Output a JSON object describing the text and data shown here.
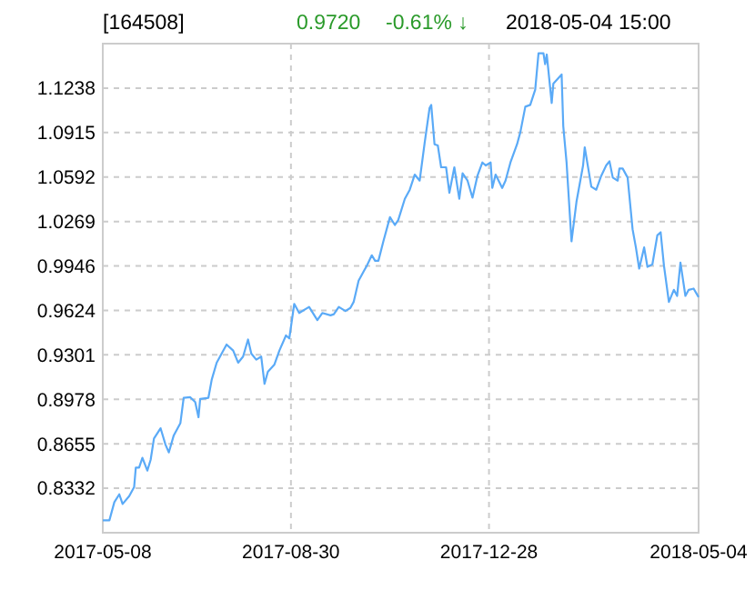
{
  "chart_data": {
    "type": "line",
    "title": "[164508]",
    "annotations": [
      "0.9720",
      "-0.61% ↓",
      "2018-05-04 15:00"
    ],
    "x": [
      "2017-05-08",
      "2017-05-12",
      "2017-05-15",
      "2017-05-18",
      "2017-05-20",
      "2017-05-24",
      "2017-05-27",
      "2017-05-28",
      "2017-05-30",
      "2017-06-01",
      "2017-06-04",
      "2017-06-06",
      "2017-06-08",
      "2017-06-12",
      "2017-06-15",
      "2017-06-17",
      "2017-06-20",
      "2017-06-24",
      "2017-06-26",
      "2017-06-30",
      "2017-07-03",
      "2017-07-05",
      "2017-07-06",
      "2017-07-11",
      "2017-07-13",
      "2017-07-16",
      "2017-07-19",
      "2017-07-22",
      "2017-07-26",
      "2017-07-29",
      "2017-08-01",
      "2017-08-04",
      "2017-08-06",
      "2017-08-09",
      "2017-08-12",
      "2017-08-14",
      "2017-08-16",
      "2017-08-20",
      "2017-08-23",
      "2017-08-27",
      "2017-08-29",
      "2017-09-01",
      "2017-09-04",
      "2017-09-10",
      "2017-09-15",
      "2017-09-18",
      "2017-09-23",
      "2017-09-25",
      "2017-09-28",
      "2017-10-02",
      "2017-10-05",
      "2017-10-07",
      "2017-10-10",
      "2017-10-13",
      "2017-10-15",
      "2017-10-18",
      "2017-10-20",
      "2017-10-22",
      "2017-10-25",
      "2017-10-29",
      "2017-11-01",
      "2017-11-03",
      "2017-11-07",
      "2017-11-10",
      "2017-11-13",
      "2017-11-16",
      "2017-11-19",
      "2017-11-22",
      "2017-11-23",
      "2017-11-25",
      "2017-11-27",
      "2017-11-29",
      "2017-12-02",
      "2017-12-04",
      "2017-12-07",
      "2017-12-10",
      "2017-12-12",
      "2017-12-15",
      "2017-12-18",
      "2017-12-21",
      "2017-12-24",
      "2017-12-26",
      "2017-12-29",
      "2017-12-30",
      "2018-01-01",
      "2018-01-05",
      "2018-01-07",
      "2018-01-10",
      "2018-01-14",
      "2018-01-16",
      "2018-01-19",
      "2018-01-22",
      "2018-01-25",
      "2018-01-27",
      "2018-01-30",
      "2018-01-31",
      "2018-02-01",
      "2018-02-04",
      "2018-02-05",
      "2018-02-10",
      "2018-02-11",
      "2018-02-13",
      "2018-02-16",
      "2018-02-19",
      "2018-02-23",
      "2018-02-24",
      "2018-02-28",
      "2018-03-03",
      "2018-03-06",
      "2018-03-09",
      "2018-03-11",
      "2018-03-13",
      "2018-03-16",
      "2018-03-17",
      "2018-03-19",
      "2018-03-22",
      "2018-03-25",
      "2018-03-27",
      "2018-03-29",
      "2018-04-01",
      "2018-04-03",
      "2018-04-06",
      "2018-04-09",
      "2018-04-11",
      "2018-04-13",
      "2018-04-16",
      "2018-04-19",
      "2018-04-21",
      "2018-04-23",
      "2018-04-26",
      "2018-04-28",
      "2018-05-01",
      "2018-05-04"
    ],
    "series": [
      {
        "color": "#5aaaf7",
        "values": [
          0.8099,
          0.8099,
          0.8231,
          0.8288,
          0.8218,
          0.8275,
          0.8341,
          0.8482,
          0.8482,
          0.8553,
          0.846,
          0.8539,
          0.8693,
          0.8768,
          0.8649,
          0.8592,
          0.8716,
          0.8804,
          0.8989,
          0.8993,
          0.8958,
          0.8848,
          0.898,
          0.8989,
          0.9121,
          0.9244,
          0.931,
          0.9376,
          0.9332,
          0.9244,
          0.9288,
          0.9412,
          0.931,
          0.9266,
          0.9288,
          0.909,
          0.9178,
          0.9231,
          0.9332,
          0.9442,
          0.942,
          0.9671,
          0.9605,
          0.9649,
          0.9553,
          0.9605,
          0.9588,
          0.9596,
          0.9649,
          0.9619,
          0.9641,
          0.9685,
          0.9839,
          0.9905,
          0.9949,
          1.0024,
          0.9984,
          0.9984,
          1.0125,
          1.0301,
          1.0244,
          1.0279,
          1.0434,
          1.05,
          1.061,
          1.0566,
          1.0839,
          1.1094,
          1.1116,
          1.083,
          1.0821,
          1.0663,
          1.0663,
          1.0478,
          1.0663,
          1.0434,
          1.0619,
          1.0566,
          1.0442,
          1.0601,
          1.0698,
          1.0676,
          1.0698,
          1.0513,
          1.061,
          1.0513,
          1.0566,
          1.0698,
          1.083,
          1.0918,
          1.1103,
          1.1116,
          1.1227,
          1.1491,
          1.1491,
          1.1412,
          1.1482,
          1.113,
          1.1271,
          1.1337,
          1.0962,
          1.0698,
          1.0125,
          1.0412,
          1.0676,
          1.0808,
          1.0522,
          1.05,
          1.0601,
          1.0676,
          1.0707,
          1.0588,
          1.0566,
          1.0654,
          1.0654,
          1.0588,
          1.0213,
          1.0081,
          0.9927,
          1.0081,
          0.994,
          0.9958,
          1.0169,
          1.0191,
          0.9949,
          0.9685,
          0.9773,
          0.9729,
          0.9971,
          0.9729,
          0.9773,
          0.9782,
          0.972
        ]
      }
    ],
    "xlim": [
      "2017-05-08",
      "2018-05-04"
    ],
    "xticks": [
      "2017-05-08",
      "2017-08-30",
      "2017-12-28",
      "2018-05-04"
    ],
    "ylim": [
      0.8009,
      1.1561
    ],
    "yticks": [
      {
        "value": 0.8332,
        "label": "0.8332"
      },
      {
        "value": 0.8655,
        "label": "0.8655"
      },
      {
        "value": 0.8978,
        "label": "0.8978"
      },
      {
        "value": 0.9301,
        "label": "0.9301"
      },
      {
        "value": 0.9624,
        "label": "0.9624"
      },
      {
        "value": 0.9946,
        "label": "0.9946"
      },
      {
        "value": 1.0269,
        "label": "1.0269"
      },
      {
        "value": 1.0592,
        "label": "1.0592"
      },
      {
        "value": 1.0915,
        "label": "1.0915"
      },
      {
        "value": 1.1238,
        "label": "1.1238"
      }
    ],
    "grid": true,
    "marker": "none",
    "line_style": "solid"
  }
}
